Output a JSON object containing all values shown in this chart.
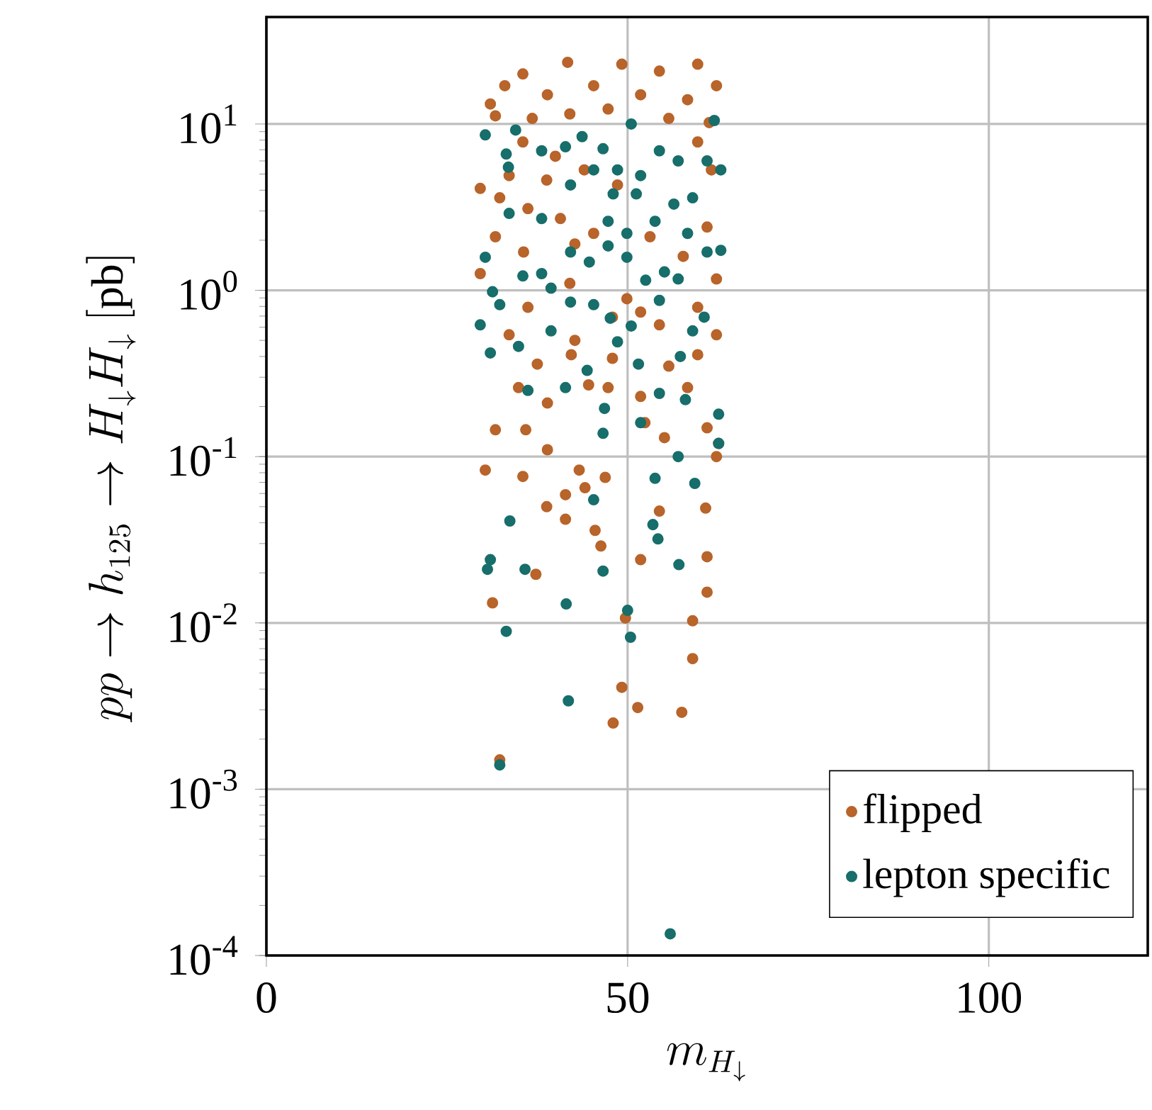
{
  "chart_data": {
    "type": "scatter",
    "xlabel": "m_{H_\\downarrow}",
    "ylabel": "pp \\to h_{125} \\to H_\\downarrow H_\\downarrow\\ [\\mathrm{pb}]",
    "log": "y",
    "grid": true,
    "legend": "bottom right",
    "marker": "circle",
    "xlim": [
      0,
      122
    ],
    "ylim": [
      0.0001,
      44
    ],
    "xticks": [
      0,
      50,
      100
    ],
    "yticks": [
      {
        "value": 0.0001,
        "label": "10$^{-4}$"
      },
      {
        "value": 0.001,
        "label": "10$^{-3}$"
      },
      {
        "value": 0.01,
        "label": "10$^{-2}$"
      },
      {
        "value": 0.1,
        "label": "10$^{-1}$"
      },
      {
        "value": 1,
        "label": "10$^{0}$"
      },
      {
        "value": 10,
        "label": "10$^{1}$"
      }
    ],
    "series": [
      {
        "name": "flipped",
        "color": "#b8642a",
        "x": [
          41.7,
          35.5,
          49.2,
          59.7,
          54.4,
          45.3,
          31.0,
          38.9,
          62.3,
          58.3,
          51.8,
          33.0,
          42.0,
          47.3,
          55.7,
          61.3,
          36.8,
          31.7,
          59.7,
          35.5,
          40.0,
          29.6,
          33.6,
          38.8,
          44.0,
          48.6,
          61.6,
          32.3,
          40.7,
          36.2,
          45.3,
          53.1,
          61.0,
          31.7,
          35.6,
          42.7,
          57.7,
          29.6,
          62.3,
          36.2,
          42.0,
          47.9,
          49.9,
          51.8,
          59.7,
          62.3,
          33.6,
          42.7,
          54.4,
          37.5,
          47.9,
          59.7,
          42.2,
          55.7,
          34.9,
          44.6,
          51.8,
          58.3,
          38.9,
          47.3,
          31.7,
          35.9,
          52.4,
          61.0,
          38.9,
          55.1,
          30.3,
          35.5,
          43.3,
          62.3,
          41.4,
          38.8,
          44.1,
          46.9,
          54.4,
          60.8,
          41.4,
          45.5,
          46.3,
          61.0,
          51.8,
          37.3,
          61.0,
          31.3,
          49.7,
          59.0,
          59.0,
          49.2,
          51.4,
          57.5,
          48.0,
          32.3,
          62.6
        ],
        "values": [
          23.5,
          20,
          22.9,
          22.9,
          20.8,
          17,
          13.2,
          15,
          17,
          14,
          15,
          17,
          11.5,
          12.3,
          10.8,
          10.2,
          10.8,
          11.2,
          7.8,
          7.8,
          6.4,
          4.1,
          4.9,
          4.6,
          5.3,
          4.3,
          5.3,
          3.6,
          2.7,
          3.1,
          2.2,
          2.1,
          2.4,
          2.1,
          1.7,
          1.9,
          1.6,
          1.26,
          1.17,
          0.79,
          1.1,
          0.69,
          0.89,
          0.74,
          0.79,
          0.54,
          0.54,
          0.5,
          0.62,
          0.36,
          0.39,
          0.41,
          0.41,
          0.35,
          0.26,
          0.27,
          0.23,
          0.26,
          0.21,
          0.26,
          0.145,
          0.145,
          0.16,
          0.149,
          0.11,
          0.13,
          0.083,
          0.076,
          0.083,
          0.1,
          0.059,
          0.05,
          0.065,
          0.075,
          0.047,
          0.049,
          0.042,
          0.036,
          0.029,
          0.025,
          0.024,
          0.0196,
          0.0153,
          0.0132,
          0.0107,
          0.0103,
          0.0061,
          0.0041,
          0.0031,
          0.0029,
          0.0025,
          0.0015,
          0.12
        ]
      },
      {
        "name": "lepton specific",
        "color": "#176e6b",
        "x": [
          30.3,
          34.5,
          33.2,
          33.5,
          43.7,
          50.5,
          62.0,
          38.1,
          41.4,
          46.6,
          54.4,
          57.0,
          61.0,
          62.9,
          45.3,
          48.6,
          51.8,
          42.1,
          48.0,
          51.2,
          56.4,
          59.0,
          38.1,
          47.3,
          53.8,
          58.3,
          33.6,
          47.3,
          49.9,
          30.3,
          42.1,
          44.7,
          49.9,
          61.0,
          62.9,
          35.5,
          38.1,
          39.4,
          55.1,
          57.0,
          31.3,
          32.3,
          52.5,
          42.1,
          45.3,
          54.4,
          29.6,
          39.4,
          47.6,
          50.5,
          59.0,
          60.6,
          31.0,
          34.9,
          48.6,
          51.5,
          57.3,
          44.4,
          36.2,
          41.4,
          54.4,
          58.0,
          46.8,
          62.6,
          51.8,
          46.6,
          62.6,
          57.0,
          53.8,
          59.3,
          45.3,
          33.7,
          53.5,
          54.2,
          31.0,
          30.6,
          35.8,
          46.6,
          57.1,
          41.5,
          50.0,
          33.2,
          50.4,
          41.8,
          32.3,
          55.9
        ],
        "values": [
          8.6,
          9.2,
          6.6,
          5.5,
          8.4,
          10,
          10.5,
          6.9,
          7.3,
          7.1,
          6.9,
          6.0,
          6.0,
          5.3,
          5.3,
          5.3,
          4.9,
          4.3,
          3.8,
          3.8,
          3.3,
          3.6,
          2.7,
          2.6,
          2.6,
          2.2,
          2.9,
          1.85,
          2.2,
          1.58,
          1.7,
          1.48,
          1.58,
          1.7,
          1.74,
          1.22,
          1.26,
          1.03,
          1.29,
          1.17,
          0.98,
          0.82,
          1.15,
          0.85,
          0.82,
          0.87,
          0.62,
          0.57,
          0.68,
          0.61,
          0.57,
          0.69,
          0.42,
          0.46,
          0.49,
          0.36,
          0.4,
          0.33,
          0.25,
          0.26,
          0.24,
          0.22,
          0.195,
          0.18,
          0.16,
          0.138,
          0.12,
          0.1,
          0.074,
          0.069,
          0.055,
          0.041,
          0.039,
          0.032,
          0.024,
          0.021,
          0.021,
          0.0205,
          0.0224,
          0.013,
          0.0119,
          0.0089,
          0.0082,
          0.0034,
          0.0014,
          0.000135
        ]
      }
    ]
  }
}
